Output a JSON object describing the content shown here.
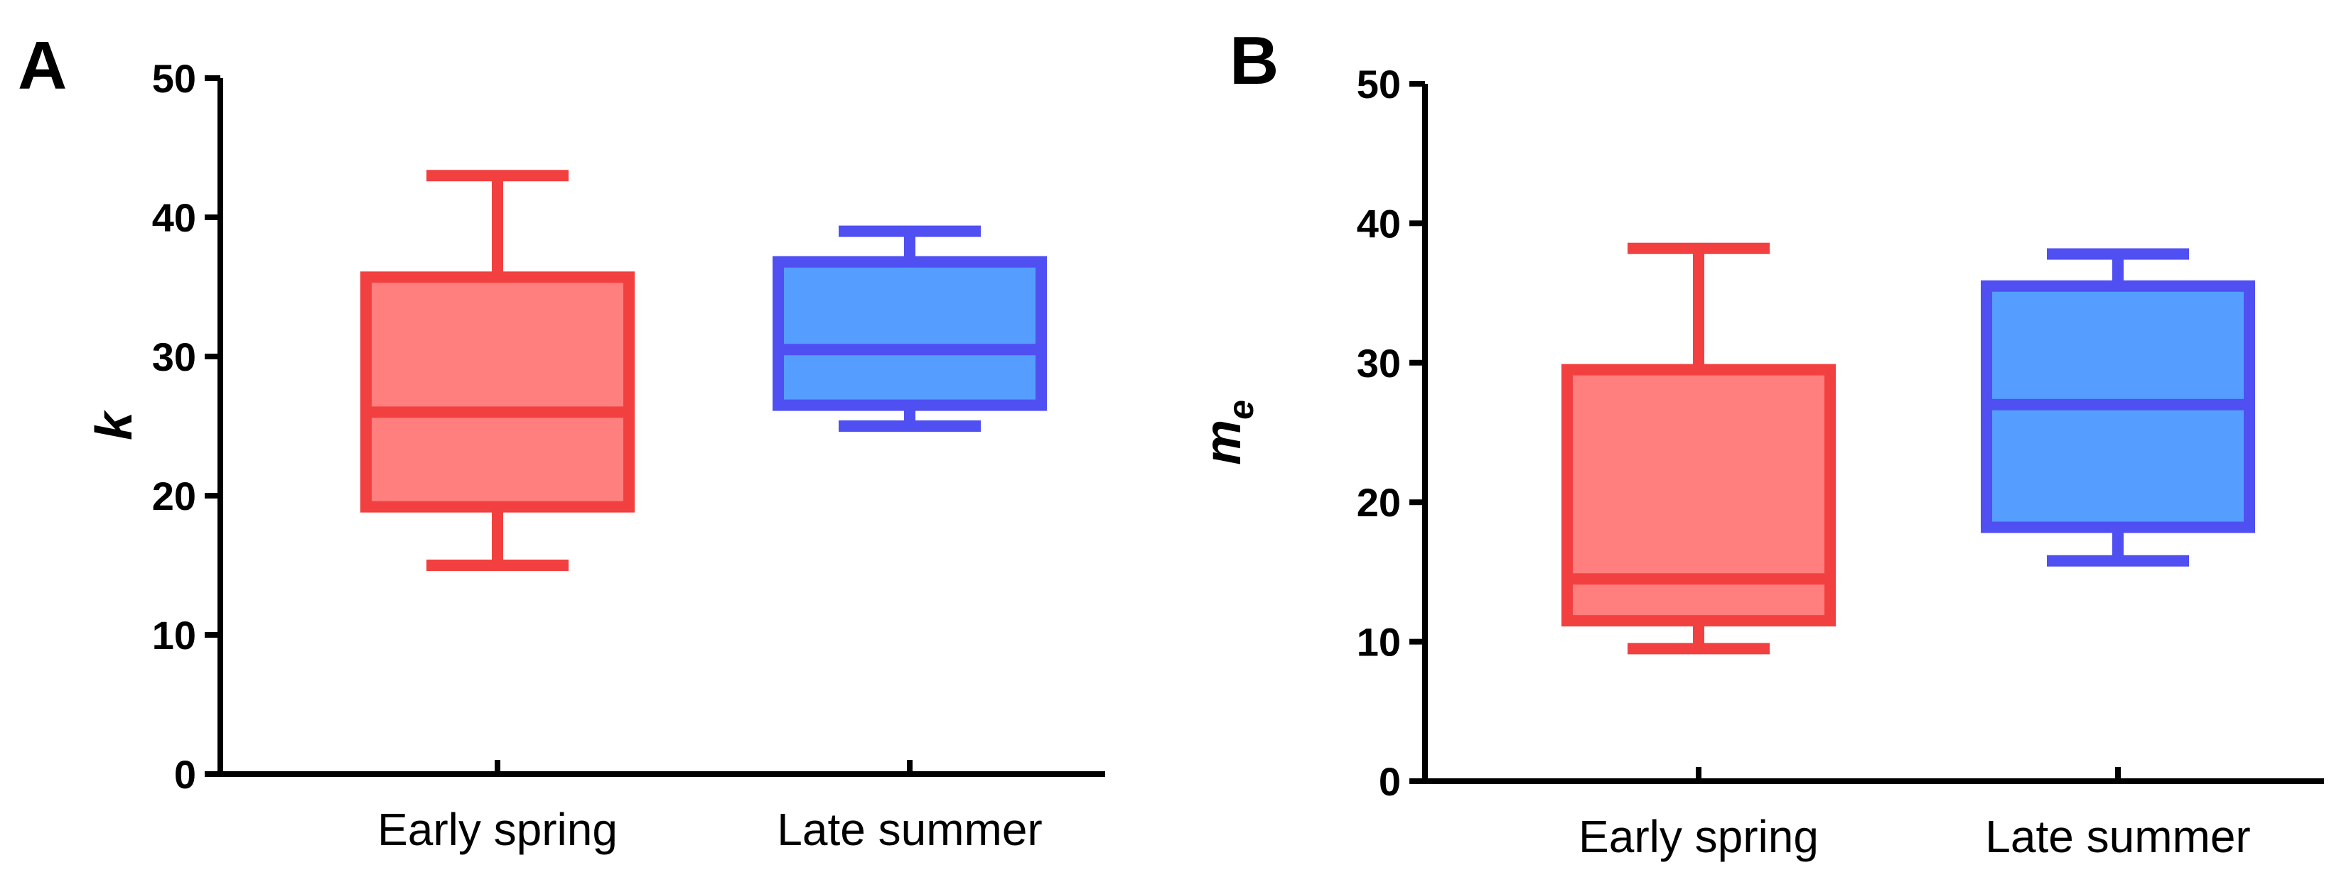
{
  "chart_data": [
    {
      "type": "box",
      "panel_label": "A",
      "ylabel": "k",
      "ylabel_subscript": "",
      "ylim": [
        0,
        50
      ],
      "yticks": [
        "0",
        "10",
        "20",
        "30",
        "40",
        "50"
      ],
      "categories": [
        "Early spring",
        "Late summer"
      ],
      "boxes": [
        {
          "min": 15,
          "q1": 19.2,
          "median": 26,
          "q3": 35.7,
          "max": 43,
          "fill": "#FF7F7F",
          "stroke": "#F24040"
        },
        {
          "min": 25,
          "q1": 26.5,
          "median": 30.5,
          "q3": 36.8,
          "max": 39,
          "fill": "#559EFF",
          "stroke": "#4F4FF2"
        }
      ],
      "grid": false,
      "legend": "none"
    },
    {
      "type": "box",
      "panel_label": "B",
      "ylabel": "m",
      "ylabel_subscript": "e",
      "ylim": [
        0,
        50
      ],
      "yticks": [
        "0",
        "10",
        "20",
        "30",
        "40",
        "50"
      ],
      "categories": [
        "Early spring",
        "Late summer"
      ],
      "boxes": [
        {
          "min": 9.5,
          "q1": 11.5,
          "median": 14.5,
          "q3": 29.5,
          "max": 38.2,
          "fill": "#FF7F7F",
          "stroke": "#F24040"
        },
        {
          "min": 15.8,
          "q1": 18.2,
          "median": 27,
          "q3": 35.5,
          "max": 37.8,
          "fill": "#559EFF",
          "stroke": "#4F4FF2"
        }
      ],
      "grid": false,
      "legend": "none"
    }
  ]
}
